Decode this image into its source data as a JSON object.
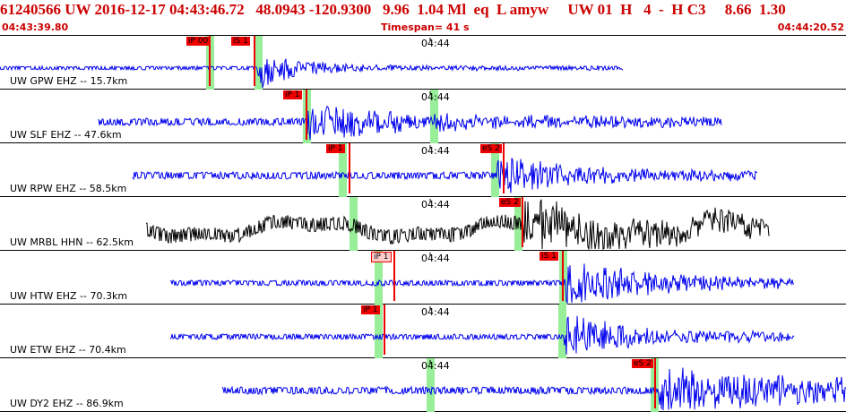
{
  "header": {
    "event_line": "61240566 UW 2016-12-17 04:43:46.72   48.0943 -120.9300   9.96  1.04 Ml  eq  L amyw     UW 01  H   4  -  H C3     8.66  1.30",
    "start_time": "04:43:39.80",
    "timespan": "Timespan=  41 s",
    "end_time": "04:44:20.52"
  },
  "colors": {
    "header_text": "#cc0000",
    "trace_blue": "#0000ee",
    "trace_black": "#000000",
    "pick_red": "#ee0000",
    "pick_pink": "#ffcccc",
    "green_bar": "#99ee99"
  },
  "panels": [
    {
      "label": "UW GPW EHZ -- 15.7km",
      "tick": "04:44",
      "color": "trace_blue",
      "amp": 2,
      "start": 0,
      "end": 695,
      "onset": 288,
      "onset_amp": 24,
      "decay": 40,
      "noise": 1.0,
      "picks": [
        {
          "text": "iP 00",
          "x": 208,
          "style": "solid"
        },
        {
          "text": "iS 1",
          "x": 258,
          "style": "solid"
        }
      ],
      "greens": [
        230,
        284
      ]
    },
    {
      "label": "UW SLF EHZ -- 47.6km",
      "tick": "04:44",
      "color": "trace_blue",
      "amp": 4,
      "start": 110,
      "end": 805,
      "onset": 343,
      "onset_amp": 18,
      "decay": 120,
      "noise": 2.5,
      "picks": [
        {
          "text": "iP 1",
          "x": 316,
          "style": "solid"
        }
      ],
      "greens": [
        338,
        480
      ]
    },
    {
      "label": "UW RPW EHZ -- 58.5km",
      "tick": "04:44",
      "color": "trace_blue",
      "amp": 4,
      "start": 148,
      "end": 845,
      "onset": 555,
      "onset_amp": 22,
      "decay": 80,
      "noise": 2.0,
      "picks": [
        {
          "text": "iP 1",
          "x": 364,
          "style": "solid"
        },
        {
          "text": "eS 2",
          "x": 536,
          "style": "solid"
        }
      ],
      "greens": [
        378,
        548
      ]
    },
    {
      "label": "UW MRBL HHN -- 62.5km",
      "tick": "04:44",
      "color": "trace_black",
      "amp": 8,
      "start": 163,
      "end": 858,
      "onset": 585,
      "onset_amp": 20,
      "decay": 160,
      "noise": 4.0,
      "picks": [
        {
          "text": "eS 2",
          "x": 557,
          "style": "solid"
        }
      ],
      "greens": [
        390,
        574
      ]
    },
    {
      "label": "UW HTW EHZ -- 70.3km",
      "tick": "04:44",
      "color": "trace_blue",
      "amp": 3,
      "start": 190,
      "end": 886,
      "onset": 630,
      "onset_amp": 26,
      "decay": 90,
      "noise": 2.0,
      "picks": [
        {
          "text": "iP 1",
          "x": 414,
          "style": "pink"
        },
        {
          "text": "iS 1",
          "x": 602,
          "style": "solid"
        }
      ],
      "greens": [
        418,
        624
      ]
    },
    {
      "label": "UW ETW EHZ -- 70.4km",
      "tick": "04:44",
      "color": "trace_blue",
      "amp": 3,
      "start": 190,
      "end": 886,
      "onset": 630,
      "onset_amp": 24,
      "decay": 80,
      "noise": 2.0,
      "picks": [
        {
          "text": "iP 1",
          "x": 403,
          "style": "solid"
        }
      ],
      "greens": [
        418,
        623
      ]
    },
    {
      "label": "UW DY2 EHZ -- 86.9km",
      "tick": "04:44",
      "color": "trace_blue",
      "amp": 4,
      "start": 248,
      "end": 944,
      "onset": 735,
      "onset_amp": 24,
      "decay": 200,
      "noise": 2.5,
      "picks": [
        {
          "text": "eS 2",
          "x": 705,
          "style": "solid"
        }
      ],
      "greens": [
        476,
        726
      ]
    }
  ]
}
